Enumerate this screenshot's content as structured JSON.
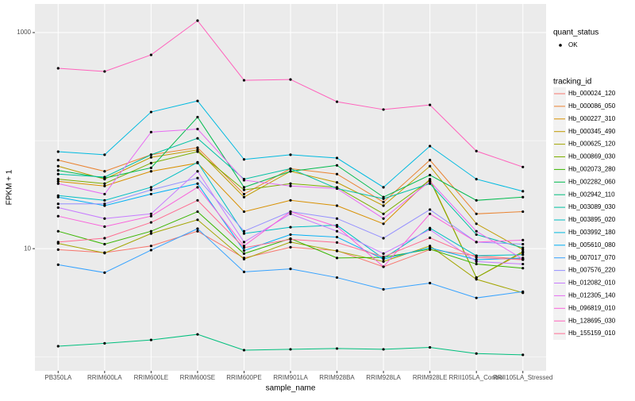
{
  "chart_data": {
    "type": "line",
    "x_label": "sample_name",
    "y_label": "FPKM + 1",
    "log_y": true,
    "grid": true,
    "legend_position": "right",
    "status_legend": {
      "title": "quant_status",
      "entries": [
        "OK"
      ],
      "color": "#000000"
    },
    "legend_title": "tracking_id",
    "categories": [
      "PB350LA",
      "RRIM600LA",
      "RRIM600LE",
      "RRIM600SE",
      "RRIM600PE",
      "RRIM901LA",
      "RRIM928BA",
      "RRIM928LA",
      "RRIM928LE",
      "RRII105LA_Control",
      "RRII105LA_Stressed"
    ],
    "ylim": [
      0.74,
      1840
    ],
    "yticks": [
      10,
      1000
    ],
    "series": [
      {
        "name": "Hb_000024_120",
        "color": "#F8766D",
        "values": [
          9.8,
          9.2,
          10.6,
          14.5,
          8.2,
          10.3,
          9.6,
          6.8,
          9.8,
          8.6,
          8.0
        ]
      },
      {
        "name": "Hb_000086_050",
        "color": "#EA8331",
        "values": [
          66,
          52,
          74,
          86,
          32,
          55,
          49,
          27,
          66,
          21,
          22
        ]
      },
      {
        "name": "Hb_000227_310",
        "color": "#D89000",
        "values": [
          42,
          38,
          52,
          62,
          22,
          28,
          25,
          17,
          44,
          5.4,
          9.2
        ]
      },
      {
        "name": "Hb_000345_490",
        "color": "#C09B00",
        "values": [
          58,
          44,
          70,
          82,
          30,
          52,
          41,
          25,
          58,
          17,
          9.8
        ]
      },
      {
        "name": "Hb_000625_120",
        "color": "#A3A500",
        "values": [
          11.2,
          9.1,
          13.8,
          18.5,
          8.0,
          11.5,
          9.5,
          7.6,
          10.6,
          5.2,
          3.9
        ]
      },
      {
        "name": "Hb_000869_030",
        "color": "#7CAE00",
        "values": [
          44,
          40,
          62,
          79,
          35,
          40,
          37,
          21,
          43,
          5.4,
          9.4
        ]
      },
      {
        "name": "Hb_002073_280",
        "color": "#39B600",
        "values": [
          14.5,
          11.0,
          14.5,
          22,
          9.0,
          12.4,
          8.2,
          8.3,
          9.9,
          7.2,
          6.6
        ]
      },
      {
        "name": "Hb_002282_060",
        "color": "#00BB4E",
        "values": [
          53,
          45,
          56,
          165,
          37,
          52,
          59,
          30,
          48,
          28,
          30
        ]
      },
      {
        "name": "Hb_002942_110",
        "color": "#00BF7D",
        "values": [
          1.25,
          1.33,
          1.43,
          1.61,
          1.15,
          1.17,
          1.19,
          1.17,
          1.22,
          1.07,
          1.04
        ]
      },
      {
        "name": "Hb_003089_030",
        "color": "#00C1A3",
        "values": [
          49,
          46,
          74,
          105,
          44,
          55,
          36,
          29,
          40,
          13.5,
          10.2
        ]
      },
      {
        "name": "Hb_003895_020",
        "color": "#00BFC4",
        "values": [
          31,
          28,
          37,
          63,
          13.8,
          15.8,
          16.5,
          8.1,
          15.5,
          8.6,
          8.8
        ]
      },
      {
        "name": "Hb_003992_180",
        "color": "#00BAE0",
        "values": [
          79,
          74,
          184,
          233,
          67,
          74,
          69,
          37,
          89,
          44,
          34
        ]
      },
      {
        "name": "Hb_005610_080",
        "color": "#00B0F6",
        "values": [
          30,
          25,
          32,
          40,
          9.6,
          13.5,
          12.8,
          8.0,
          10.2,
          7.9,
          8.2
        ]
      },
      {
        "name": "Hb_007017_070",
        "color": "#35A2FF",
        "values": [
          7.1,
          6.0,
          9.7,
          15.3,
          6.1,
          6.5,
          5.4,
          4.2,
          4.8,
          3.5,
          4.0
        ]
      },
      {
        "name": "Hb_007576_220",
        "color": "#9590FF",
        "values": [
          26,
          26,
          35,
          45,
          14.5,
          22,
          19,
          12.5,
          23,
          11.5,
          11.0
        ]
      },
      {
        "name": "Hb_012082_010",
        "color": "#C77CFF",
        "values": [
          24,
          19,
          21,
          52,
          11.5,
          21,
          14.5,
          9.0,
          15,
          7.6,
          7.2
        ]
      },
      {
        "name": "Hb_012305_140",
        "color": "#E76BF3",
        "values": [
          40,
          32,
          120,
          128,
          43,
          38,
          36,
          19,
          42,
          14.5,
          8.0
        ]
      },
      {
        "name": "Hb_096819_010",
        "color": "#FA62DB",
        "values": [
          20,
          16,
          20,
          37,
          10.6,
          22,
          16,
          6.8,
          21,
          11.5,
          12.0
        ]
      },
      {
        "name": "Hb_128695_030",
        "color": "#FF62BC",
        "values": [
          467,
          437,
          622,
          1289,
          362,
          368,
          229,
          194,
          214,
          80,
          57
        ]
      },
      {
        "name": "Hb_155159_010",
        "color": "#FF6C91",
        "values": [
          11.5,
          12.5,
          17.5,
          28,
          10.2,
          12.2,
          11.4,
          8.4,
          12.6,
          8.3,
          7.9
        ]
      }
    ]
  }
}
